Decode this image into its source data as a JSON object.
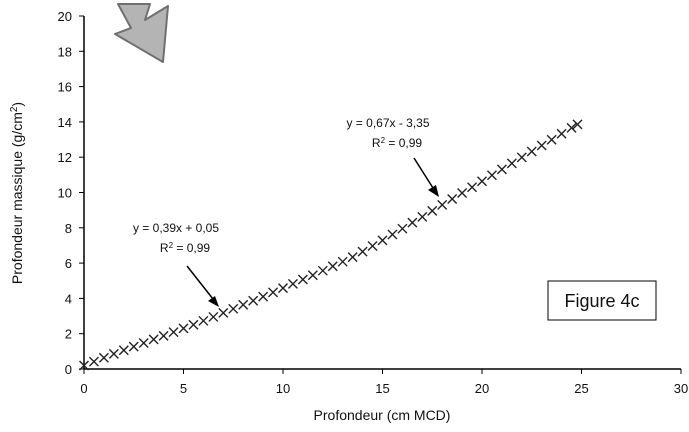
{
  "chart_data": {
    "type": "scatter",
    "xlabel": "Profondeur (cm MCD)",
    "ylabel_main": "Profondeur massique (g/cm",
    "ylabel_sup": "2",
    "ylabel_end": ")",
    "xlim": [
      0,
      30
    ],
    "ylim": [
      0,
      20
    ],
    "x_ticks": [
      0,
      5,
      10,
      15,
      20,
      25,
      30
    ],
    "y_ticks": [
      0,
      2,
      4,
      6,
      8,
      10,
      12,
      14,
      16,
      18,
      20
    ],
    "grid": false,
    "marker": "x",
    "series": [
      {
        "x": [
          0.0,
          0.5,
          1.0,
          1.5,
          2.0,
          2.5,
          3.0,
          3.5,
          4.0,
          4.5,
          5.0,
          5.5,
          6.0,
          6.5,
          7.0,
          7.5,
          8.0,
          8.5,
          9.0,
          9.5,
          10.0,
          10.5,
          11.0,
          11.5,
          12.0,
          12.5,
          13.0,
          13.5,
          14.0,
          14.5,
          15.0,
          15.5,
          16.0,
          16.5,
          17.0,
          17.5,
          18.0,
          18.5,
          19.0,
          19.5,
          20.0,
          20.5,
          21.0,
          21.5,
          22.0,
          22.5,
          23.0,
          23.5,
          24.0,
          24.5,
          24.8
        ],
        "y": [
          0.2,
          0.42,
          0.64,
          0.86,
          1.06,
          1.27,
          1.47,
          1.68,
          1.88,
          2.09,
          2.3,
          2.51,
          2.73,
          2.95,
          3.18,
          3.41,
          3.64,
          3.87,
          4.1,
          4.34,
          4.58,
          4.82,
          5.07,
          5.31,
          5.57,
          5.82,
          6.08,
          6.34,
          6.65,
          6.97,
          7.29,
          7.62,
          7.95,
          8.29,
          8.62,
          8.96,
          9.3,
          9.63,
          9.97,
          10.3,
          10.64,
          10.98,
          11.31,
          11.65,
          11.99,
          12.32,
          12.66,
          12.99,
          13.33,
          13.66,
          13.86
        ]
      }
    ],
    "annotations": [
      {
        "eq": "y = 0,39x + 0,05",
        "r2_main": "R",
        "r2_sup": "2",
        "r2_end": " = 0,99"
      },
      {
        "eq": "y = 0,67x - 3,35",
        "r2_main": "R",
        "r2_sup": "2",
        "r2_end": " = 0,99"
      }
    ],
    "figure_label": "Figure 4c"
  },
  "colors": {
    "axis": "#000000",
    "marker": "#222222",
    "arrow_fill": "#b4b4b4",
    "arrow_stroke": "#707070"
  }
}
